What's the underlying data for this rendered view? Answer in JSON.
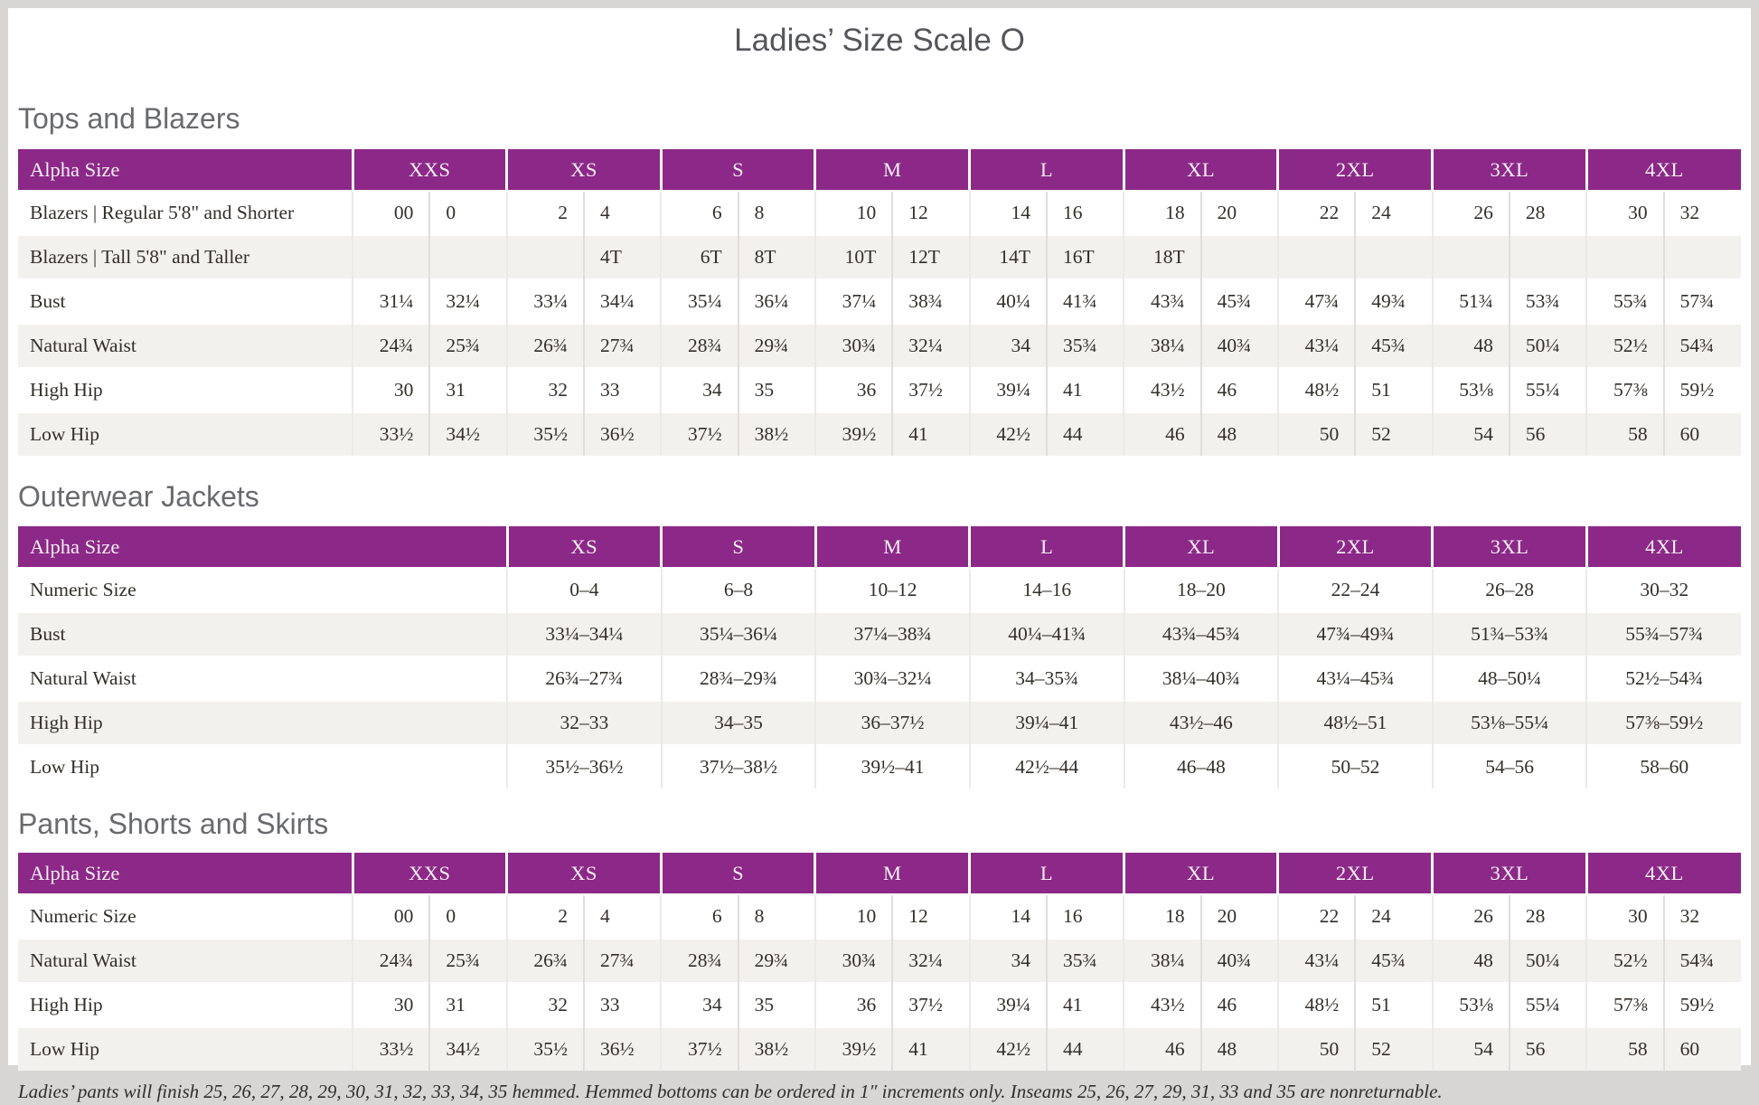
{
  "page": {
    "title": "Ladies’ Size Scale O",
    "footnote": "Ladies’ pants will finish 25, 26, 27, 28, 29, 30, 31, 32, 33, 34, 35 hemmed. Hemmed bottoms can be ordered in 1″ increments only. Inseams 25, 26, 27, 29, 31, 33 and 35 are nonreturnable."
  },
  "colors": {
    "accent_purple": "#8C2888",
    "row_alt_gray": "#F2F1EE",
    "heading_gray": "#696A6D",
    "title_gray": "#55565A",
    "body_text": "#322F2B",
    "page_border": "#D7D6D4"
  },
  "tables": [
    {
      "name": "tops-and-blazers",
      "heading": "Tops and Blazers",
      "header_label": "Alpha Size",
      "paired": true,
      "label_col_width": 370,
      "sizes": [
        "XXS",
        "XS",
        "S",
        "M",
        "L",
        "XL",
        "2XL",
        "3XL",
        "4XL"
      ],
      "rows": [
        {
          "label": "Blazers | Regular 5'8\" and Shorter",
          "cells": [
            "00",
            "0",
            "2",
            "4",
            "6",
            "8",
            "10",
            "12",
            "14",
            "16",
            "18",
            "20",
            "22",
            "24",
            "26",
            "28",
            "30",
            "32"
          ]
        },
        {
          "label": "Blazers | Tall 5'8\" and Taller",
          "cells": [
            "",
            "",
            "",
            "4T",
            "6T",
            "8T",
            "10T",
            "12T",
            "14T",
            "16T",
            "18T",
            "",
            "",
            "",
            "",
            "",
            "",
            ""
          ]
        },
        {
          "label": "Bust",
          "cells": [
            "31¼",
            "32¼",
            "33¼",
            "34¼",
            "35¼",
            "36¼",
            "37¼",
            "38¾",
            "40¼",
            "41¾",
            "43¾",
            "45¾",
            "47¾",
            "49¾",
            "51¾",
            "53¾",
            "55¾",
            "57¾"
          ]
        },
        {
          "label": "Natural Waist",
          "cells": [
            "24¾",
            "25¾",
            "26¾",
            "27¾",
            "28¾",
            "29¾",
            "30¾",
            "32¼",
            "34",
            "35¾",
            "38¼",
            "40¾",
            "43¼",
            "45¾",
            "48",
            "50¼",
            "52½",
            "54¾"
          ]
        },
        {
          "label": "High Hip",
          "cells": [
            "30",
            "31",
            "32",
            "33",
            "34",
            "35",
            "36",
            "37½",
            "39¼",
            "41",
            "43½",
            "46",
            "48½",
            "51",
            "53⅛",
            "55¼",
            "57⅜",
            "59½"
          ]
        },
        {
          "label": "Low Hip",
          "cells": [
            "33½",
            "34½",
            "35½",
            "36½",
            "37½",
            "38½",
            "39½",
            "41",
            "42½",
            "44",
            "46",
            "48",
            "50",
            "52",
            "54",
            "56",
            "58",
            "60"
          ]
        }
      ]
    },
    {
      "name": "outerwear-jackets",
      "heading": "Outerwear Jackets",
      "header_label": "Alpha Size",
      "paired": false,
      "label_col_width": 541,
      "sizes": [
        "XS",
        "S",
        "M",
        "L",
        "XL",
        "2XL",
        "3XL",
        "4XL"
      ],
      "rows": [
        {
          "label": "Numeric Size",
          "cells": [
            "0–4",
            "6–8",
            "10–12",
            "14–16",
            "18–20",
            "22–24",
            "26–28",
            "30–32"
          ]
        },
        {
          "label": "Bust",
          "cells": [
            "33¼–34¼",
            "35¼–36¼",
            "37¼–38¾",
            "40¼–41¾",
            "43¾–45¾",
            "47¾–49¾",
            "51¾–53¾",
            "55¾–57¾"
          ]
        },
        {
          "label": "Natural Waist",
          "cells": [
            "26¾–27¾",
            "28¾–29¾",
            "30¾–32¼",
            "34–35¾",
            "38¼–40¾",
            "43¼–45¾",
            "48–50¼",
            "52½–54¾"
          ]
        },
        {
          "label": "High Hip",
          "cells": [
            "32–33",
            "34–35",
            "36–37½",
            "39¼–41",
            "43½–46",
            "48½–51",
            "53⅛–55¼",
            "57⅜–59½"
          ]
        },
        {
          "label": "Low Hip",
          "cells": [
            "35½–36½",
            "37½–38½",
            "39½–41",
            "42½–44",
            "46–48",
            "50–52",
            "54–56",
            "58–60"
          ]
        }
      ]
    },
    {
      "name": "pants-shorts-and-skirts",
      "heading": "Pants, Shorts and Skirts",
      "header_label": "Alpha Size",
      "paired": true,
      "label_col_width": 370,
      "sizes": [
        "XXS",
        "XS",
        "S",
        "M",
        "L",
        "XL",
        "2XL",
        "3XL",
        "4XL"
      ],
      "rows": [
        {
          "label": "Numeric Size",
          "cells": [
            "00",
            "0",
            "2",
            "4",
            "6",
            "8",
            "10",
            "12",
            "14",
            "16",
            "18",
            "20",
            "22",
            "24",
            "26",
            "28",
            "30",
            "32"
          ]
        },
        {
          "label": "Natural Waist",
          "cells": [
            "24¾",
            "25¾",
            "26¾",
            "27¾",
            "28¾",
            "29¾",
            "30¾",
            "32¼",
            "34",
            "35¾",
            "38¼",
            "40¾",
            "43¼",
            "45¾",
            "48",
            "50¼",
            "52½",
            "54¾"
          ]
        },
        {
          "label": "High Hip",
          "cells": [
            "30",
            "31",
            "32",
            "33",
            "34",
            "35",
            "36",
            "37½",
            "39¼",
            "41",
            "43½",
            "46",
            "48½",
            "51",
            "53⅛",
            "55¼",
            "57⅜",
            "59½"
          ]
        },
        {
          "label": "Low Hip",
          "cells": [
            "33½",
            "34½",
            "35½",
            "36½",
            "37½",
            "38½",
            "39½",
            "41",
            "42½",
            "44",
            "46",
            "48",
            "50",
            "52",
            "54",
            "56",
            "58",
            "60"
          ]
        }
      ]
    }
  ]
}
